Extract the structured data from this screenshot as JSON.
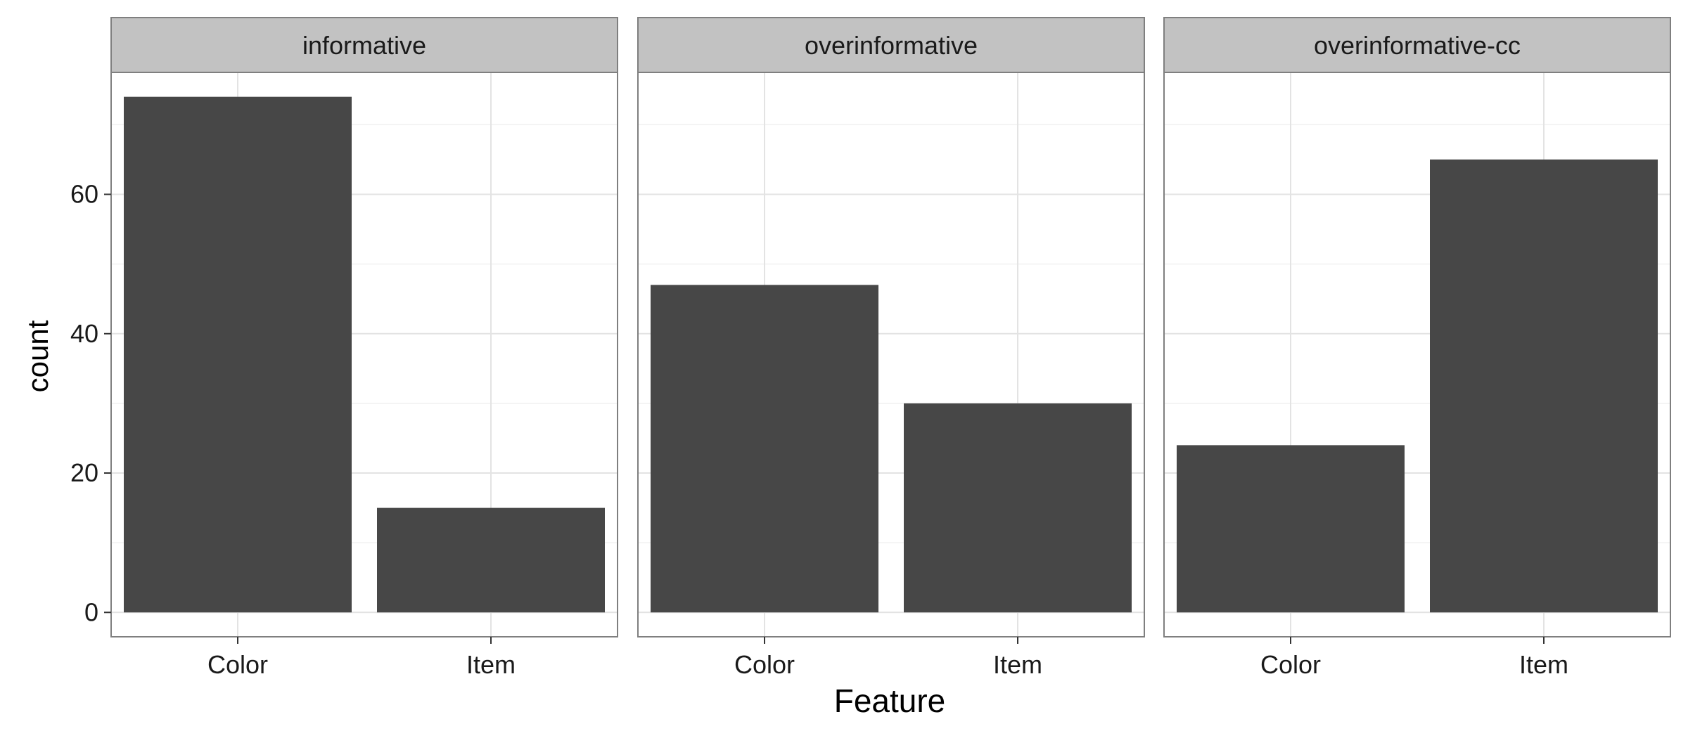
{
  "chart_data": {
    "type": "bar",
    "facet_by": "panel",
    "xlabel": "Feature",
    "ylabel": "count",
    "categories": [
      "Color",
      "Item"
    ],
    "ylim": [
      -3.5,
      77.5
    ],
    "yticks": [
      0,
      20,
      40,
      60
    ],
    "grid": true,
    "panels": [
      {
        "label": "informative",
        "values": [
          74,
          15
        ]
      },
      {
        "label": "overinformative",
        "values": [
          47,
          30
        ]
      },
      {
        "label": "overinformative-cc",
        "values": [
          24,
          65
        ]
      }
    ]
  },
  "colors": {
    "bar": "#474747",
    "strip": "#c2c2c2",
    "panel_border": "#7f7f7f",
    "grid_major": "#e3e3e3",
    "grid_minor": "#f1f1f1",
    "text": "#1a1a1a",
    "axis_text": "#1a1a1a"
  }
}
